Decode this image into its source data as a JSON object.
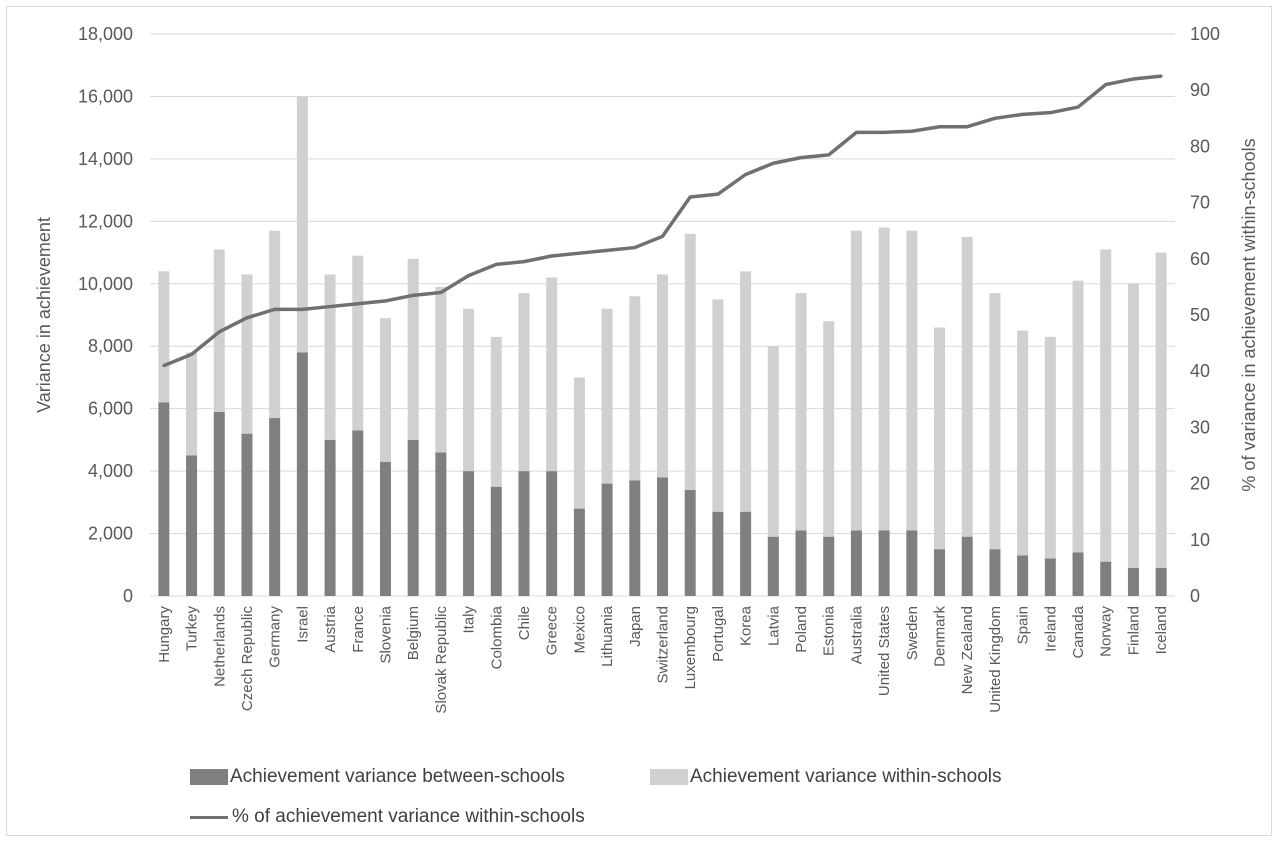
{
  "chart_data": {
    "type": "bar",
    "stacked": true,
    "title": "",
    "ylabel": "Variance in achievement",
    "y2label": "% of variance in achievement  within-schools",
    "ylim": [
      0,
      18000
    ],
    "y2lim": [
      0,
      100
    ],
    "yticks": [
      "0",
      "2,000",
      "4,000",
      "6,000",
      "8,000",
      "10,000",
      "12,000",
      "14,000",
      "16,000",
      "18,000"
    ],
    "y2ticks": [
      "0",
      "10",
      "20",
      "30",
      "40",
      "50",
      "60",
      "70",
      "80",
      "90",
      "100"
    ],
    "grid": true,
    "legend_position": "bottom",
    "categories": [
      "Hungary",
      "Turkey",
      "Netherlands",
      "Czech Republic",
      "Germany",
      "Israel",
      "Austria",
      "France",
      "Slovenia",
      "Belgium",
      "Slovak Republic",
      "Italy",
      "Colombia",
      "Chile",
      "Greece",
      "Mexico",
      "Lithuania",
      "Japan",
      "Switzerland",
      "Luxembourg",
      "Portugal",
      "Korea",
      "Latvia",
      "Poland",
      "Estonia",
      "Australia",
      "United States",
      "Sweden",
      "Denmark",
      "New Zealand",
      "United Kingdom",
      "Spain",
      "Ireland",
      "Canada",
      "Norway",
      "Finland",
      "Iceland"
    ],
    "series": [
      {
        "name": "Achievement variance between-schools",
        "type": "bar",
        "axis": "left",
        "color": "#7f7f7f",
        "values": [
          6200,
          4500,
          5900,
          5200,
          5700,
          7800,
          5000,
          5300,
          4300,
          5000,
          4600,
          4000,
          3500,
          4000,
          4000,
          2800,
          3600,
          3700,
          3800,
          3400,
          2700,
          2700,
          1900,
          2100,
          1900,
          2100,
          2100,
          2100,
          1500,
          1900,
          1500,
          1300,
          1200,
          1400,
          1100,
          900,
          900
        ]
      },
      {
        "name": "Achievement variance within-schools",
        "type": "bar",
        "axis": "left",
        "color": "#d0d0d0",
        "values": [
          4200,
          3300,
          5200,
          5100,
          6000,
          8200,
          5300,
          5600,
          4600,
          5800,
          5300,
          5200,
          4800,
          5700,
          6200,
          4200,
          5600,
          5900,
          6500,
          8200,
          6800,
          7700,
          6100,
          7600,
          6900,
          9600,
          9700,
          9600,
          7100,
          9600,
          8200,
          7200,
          7100,
          8700,
          10000,
          9100,
          10100
        ]
      },
      {
        "name": "% of achievement variance within-schools",
        "type": "line",
        "axis": "right",
        "color": "#707070",
        "values": [
          41,
          43,
          47,
          49.5,
          51,
          51,
          51.5,
          52,
          52.5,
          53.5,
          54,
          57,
          59,
          59.5,
          60.5,
          61,
          61.5,
          62,
          64,
          71,
          71.5,
          75,
          77,
          78,
          78.5,
          82.5,
          82.5,
          82.7,
          83.5,
          83.5,
          85,
          85.7,
          86,
          87,
          91,
          92,
          92.5
        ]
      }
    ]
  }
}
